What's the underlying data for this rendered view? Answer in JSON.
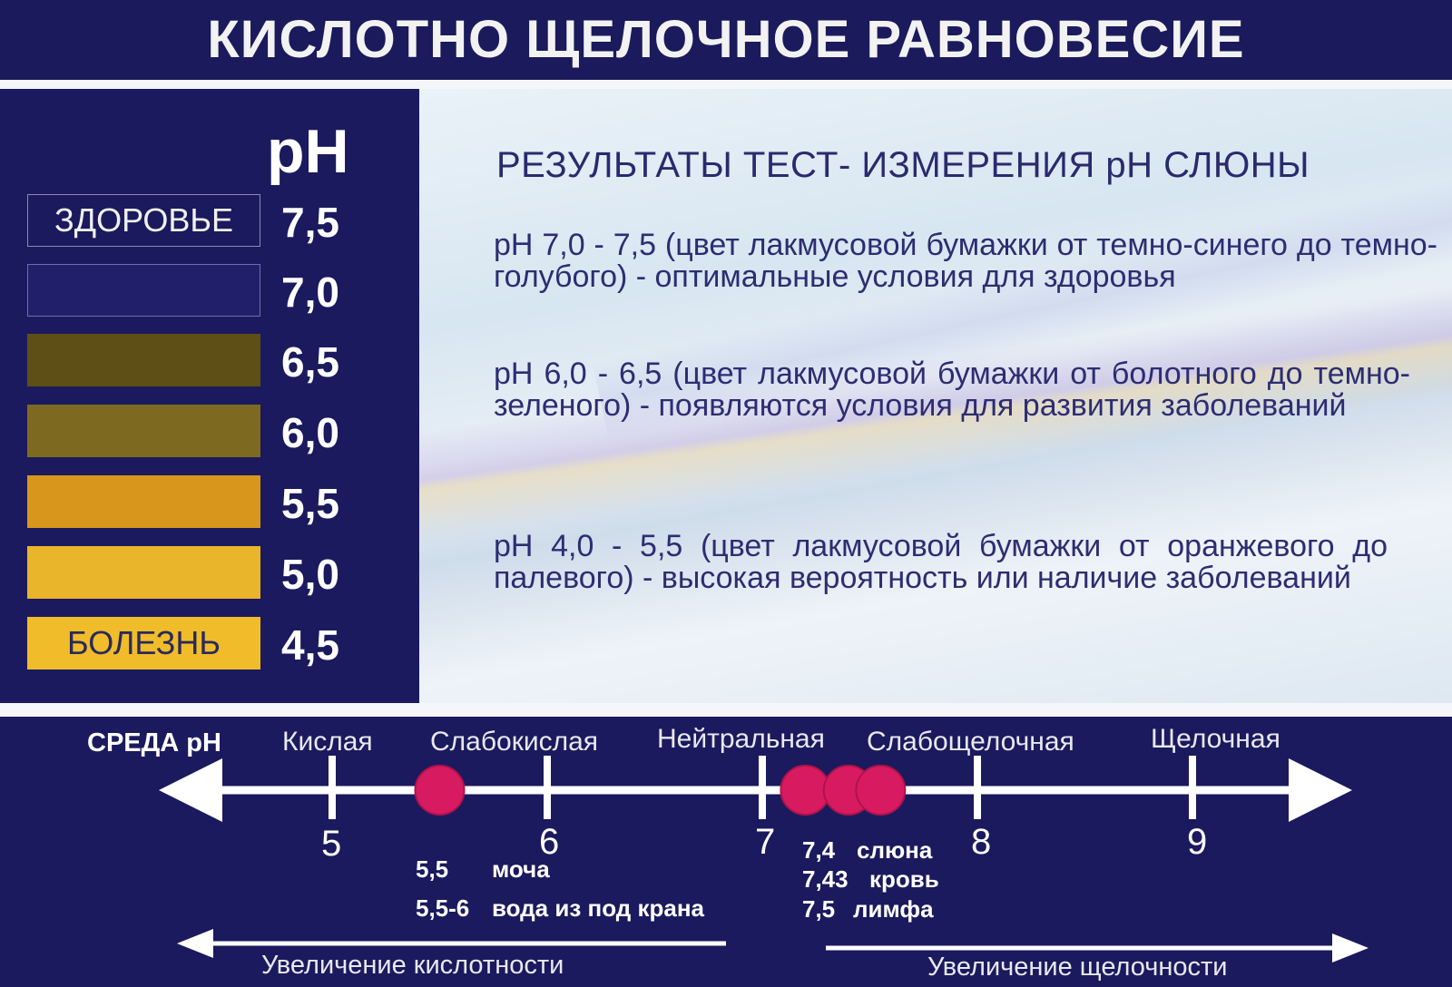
{
  "title": "КИСЛОТНО ЩЕЛОЧНОЕ РАВНОВЕСИЕ",
  "scale": {
    "ph_label": "pH",
    "rows": [
      {
        "label": "ЗДОРОВЬЕ",
        "value": "7,5",
        "color": "#1b1a5e"
      },
      {
        "label": "",
        "value": "7,0",
        "color": "#221f6a"
      },
      {
        "label": "",
        "value": "6,5",
        "color": "#5e4f17"
      },
      {
        "label": "",
        "value": "6,0",
        "color": "#7d6a20"
      },
      {
        "label": "",
        "value": "5,5",
        "color": "#d9961c"
      },
      {
        "label": "",
        "value": "5,0",
        "color": "#e9b52a"
      },
      {
        "label": "БОЛЕЗНЬ",
        "value": "4,5",
        "color": "#f0bc2a"
      }
    ]
  },
  "results": {
    "title": "РЕЗУЛЬТАТЫ ТЕСТ- ИЗМЕРЕНИЯ  pH СЛЮНЫ",
    "paragraphs": [
      "pH 7,0 - 7,5 (цвет лакмусовой бумажки от темно-синего до темно-голубого) - оптимальные условия для здоровья",
      "pH 6,0 - 6,5 (цвет лакмусовой бумажки от болотного до темно-зеленого) - появляются условия для развития заболеваний",
      "pH 4,0 - 5,5 (цвет лакмусовой бумажки от оранжевого до палевого) - высокая вероятность или наличие заболеваний"
    ]
  },
  "axis": {
    "header": "СРЕДА  pH",
    "zones": [
      "Кислая",
      "Слабокислая",
      "Нейтральная",
      "Слабощелочная",
      "Щелочная"
    ],
    "ticks": [
      5,
      6,
      7,
      8,
      9
    ],
    "points": [
      5.5,
      7.2,
      7.4,
      7.55
    ],
    "point_color": "#d81b60",
    "notes_left": [
      {
        "value": "5,5",
        "text": "моча"
      },
      {
        "value": "5,5-6",
        "text": "вода из под крана"
      }
    ],
    "notes_right": [
      {
        "value": "7,4",
        "text": "слюна"
      },
      {
        "value": "7,43",
        "text": "кровь"
      },
      {
        "value": "7,5",
        "text": "лимфа"
      }
    ],
    "acid_arrow": "Увеличение кислотности",
    "alkali_arrow": "Увеличение щелочности"
  }
}
